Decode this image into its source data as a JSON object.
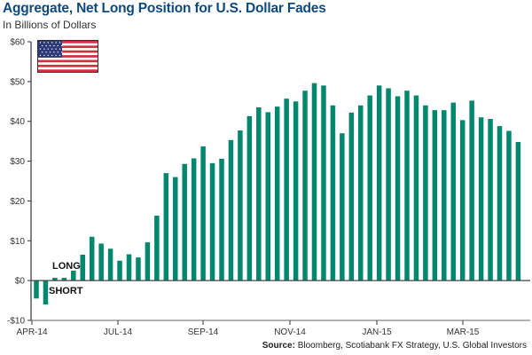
{
  "chart_data": {
    "type": "bar",
    "title": "Aggregate, Net Long Position for U.S. Dollar Fades",
    "subtitle": "In Billions of Dollars",
    "ylabel": "In Billions of Dollars",
    "xlabel": "",
    "ylim": [
      -10,
      60
    ],
    "yticks": [
      -10,
      0,
      10,
      20,
      30,
      40,
      50,
      60
    ],
    "ytick_labels": [
      "-$10",
      "$0",
      "$10",
      "$20",
      "$30",
      "$40",
      "$50",
      "$60"
    ],
    "xtick_labels": [
      "APR-14",
      "JUL-14",
      "SEP-14",
      "NOV-14",
      "JAN-15",
      "MAR-15"
    ],
    "annotations": [
      "LONG",
      "SHORT"
    ],
    "grid": false,
    "bar_color": "#00886f",
    "values": [
      -4.5,
      -6,
      0.7,
      0.7,
      2.5,
      6.5,
      11,
      9.3,
      8,
      5,
      6.6,
      5.8,
      9.6,
      16.3,
      27,
      26,
      29.3,
      30.7,
      33.7,
      29.5,
      30.6,
      35.3,
      37.7,
      41.3,
      43.5,
      42.3,
      43.7,
      45.7,
      45,
      47.7,
      49.6,
      49,
      44,
      37,
      42.2,
      44,
      46.5,
      49,
      48.3,
      46.3,
      47.7,
      46.5,
      44,
      42.8,
      42.8,
      44.7,
      40.3,
      45.2,
      41,
      40.6,
      38.8,
      37.6,
      34.8
    ]
  },
  "source": {
    "label": "Source:",
    "text": "Bloomberg, Scotiabank FX Strategy, U.S. Global Investors"
  },
  "flag_icon": "us-flag-icon"
}
